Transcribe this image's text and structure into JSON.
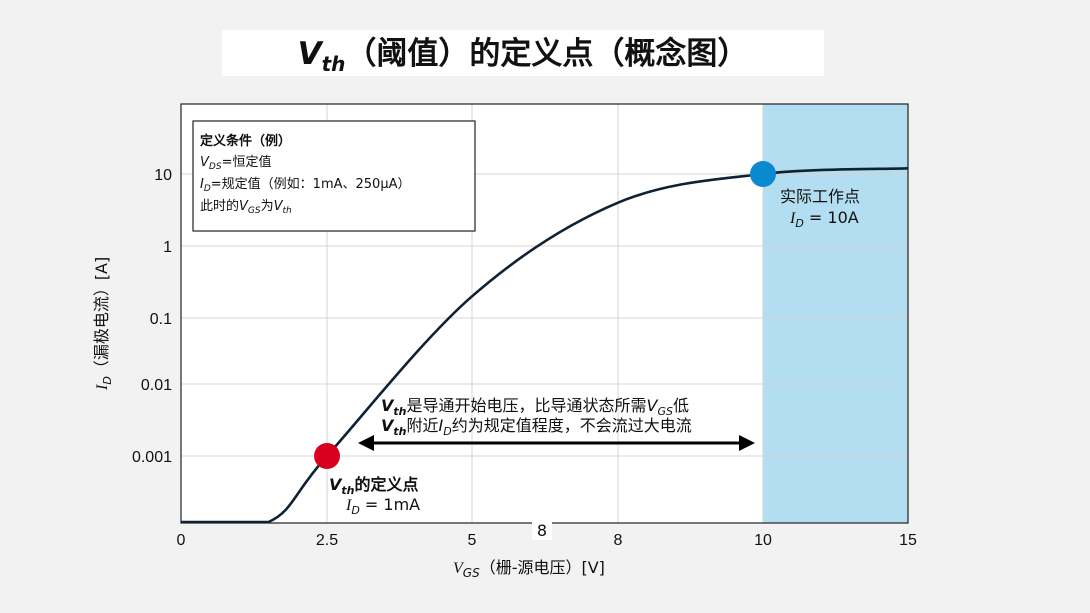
{
  "title": {
    "var": "V",
    "sub": "th",
    "rest": "（阈值）的定义点（概念图）"
  },
  "chart_data": {
    "type": "line",
    "x_ticks": [
      "0",
      "2.5",
      "5",
      "8",
      "10",
      "15"
    ],
    "y_ticks": [
      "10",
      "1",
      "0.1",
      "0.01",
      "0.001"
    ],
    "xlabel": {
      "var": "V",
      "sub": "GS",
      "rest": "（栅-源电压）[V]"
    },
    "ylabel": {
      "var": "I",
      "sub": "D",
      "rest": "（漏极电流）[A]"
    },
    "xlim": [
      0,
      15
    ],
    "series": [
      {
        "color": "#0f2233",
        "points": [
          [
            0,
            1e-05
          ],
          [
            1.5,
            1e-05
          ],
          [
            2.5,
            0.001
          ],
          [
            5,
            0.2
          ],
          [
            8,
            4
          ],
          [
            10,
            10
          ],
          [
            15,
            12
          ]
        ]
      }
    ],
    "shaded_region": {
      "x_from": 10,
      "x_to": 15,
      "color": "#b3ddf0"
    },
    "legend_box": {
      "heading": "定义条件（例）",
      "line1": {
        "var": "V",
        "sub": "DS",
        "rest": "=恒定值"
      },
      "line2": {
        "var": "I",
        "sub": "D",
        "rest": "=规定值（例如：1mA、250μA）"
      },
      "line3": {
        "pre": "此时的",
        "var1": "V",
        "sub1": "GS",
        "mid": "为",
        "var2": "V",
        "sub2": "th"
      }
    },
    "points": [
      {
        "name": "vth-point",
        "x": 2.5,
        "y": 0.001,
        "color": "#d7001f",
        "label_bold_var": "V",
        "label_bold_sub": "th",
        "label_bold_rest": "的定义点",
        "label2_var": "I",
        "label2_sub": "D",
        "label2_rest": " = 1mA"
      },
      {
        "name": "operating-point",
        "x": 10,
        "y": 10,
        "color": "#0a88d0",
        "label1": "实际工作点",
        "label2_var": "I",
        "label2_sub": "D",
        "label2_rest": " = 10A"
      }
    ],
    "arrow_annotation": {
      "line1": {
        "var": "V",
        "sub": "th",
        "rest1": "是导通开始电压，比导通状态所需",
        "var2": "V",
        "sub2": "GS",
        "rest2": "低"
      },
      "line2": {
        "var": "V",
        "sub": "th",
        "rest1": "附近",
        "var2": "I",
        "sub2": "D",
        "rest2": "约为规定值程度，不会流过大电流"
      },
      "from_x": 3,
      "to_x": 10
    },
    "stray_label": "8",
    "grid": true
  }
}
